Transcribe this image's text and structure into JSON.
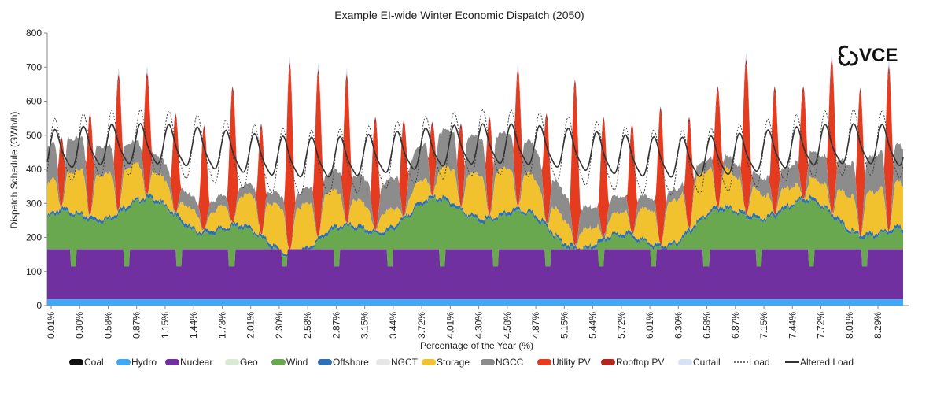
{
  "logo": {
    "text": "VCE"
  },
  "chart_data": {
    "type": "area",
    "title": "Example EI-wide Winter Economic Dispatch (2050)",
    "xlabel": "Percentage of the Year (%)",
    "ylabel": "Dispatch Schedule (GWh/h)",
    "ylim": [
      0,
      800
    ],
    "yticks": [
      0,
      100,
      200,
      300,
      400,
      500,
      600,
      700,
      800
    ],
    "xlim": [
      0,
      8.6
    ],
    "xticks": [
      "0.01%",
      "0.30%",
      "0.58%",
      "0.87%",
      "1.15%",
      "1.44%",
      "1.73%",
      "2.01%",
      "2.30%",
      "2.58%",
      "2.87%",
      "3.15%",
      "3.44%",
      "3.72%",
      "4.01%",
      "4.30%",
      "4.58%",
      "4.87%",
      "5.15%",
      "5.44%",
      "5.72%",
      "6.01%",
      "6.30%",
      "6.58%",
      "6.87%",
      "7.15%",
      "7.44%",
      "7.72%",
      "8.01%",
      "8.29%"
    ],
    "grid": false,
    "legend_position": "bottom",
    "series": [
      {
        "name": "Coal",
        "color": "#111111",
        "style": "area"
      },
      {
        "name": "Hydro",
        "color": "#3fa9f5",
        "style": "area"
      },
      {
        "name": "Nuclear",
        "color": "#7030a0",
        "style": "area"
      },
      {
        "name": "Geo",
        "color": "#d9ead3",
        "style": "area"
      },
      {
        "name": "Wind",
        "color": "#6aa84f",
        "style": "area"
      },
      {
        "name": "Offshore",
        "color": "#2f6fb3",
        "style": "area"
      },
      {
        "name": "NGCT",
        "color": "#e6e6e6",
        "style": "area"
      },
      {
        "name": "Storage",
        "color": "#f2c12e",
        "style": "area"
      },
      {
        "name": "NGCC",
        "color": "#8c8c8c",
        "style": "area"
      },
      {
        "name": "Utility PV",
        "color": "#e53b1f",
        "style": "area"
      },
      {
        "name": "Rooftop PV",
        "color": "#b3261e",
        "style": "area"
      },
      {
        "name": "Curtail",
        "color": "#d7e3f4",
        "style": "area"
      },
      {
        "name": "Load",
        "color": "#444444",
        "style": "dotted-line"
      },
      {
        "name": "Altered Load",
        "color": "#333333",
        "style": "line"
      }
    ],
    "approximate_levels": {
      "hydro_gwh_h": 18,
      "nuclear_top_gwh_h": 165,
      "wind_top_range_gwh_h": [
        200,
        340
      ],
      "load_range_gwh_h": [
        330,
        720
      ],
      "altered_load_range_gwh_h": [
        350,
        570
      ]
    },
    "daily_solar_peaks_gwh_h": [
      480,
      550,
      665,
      670,
      550,
      515,
      630,
      520,
      700,
      680,
      665,
      540,
      530,
      525,
      520,
      540,
      680,
      550,
      650,
      540,
      520,
      570,
      540,
      630,
      710,
      630,
      630,
      710,
      625,
      690
    ]
  }
}
